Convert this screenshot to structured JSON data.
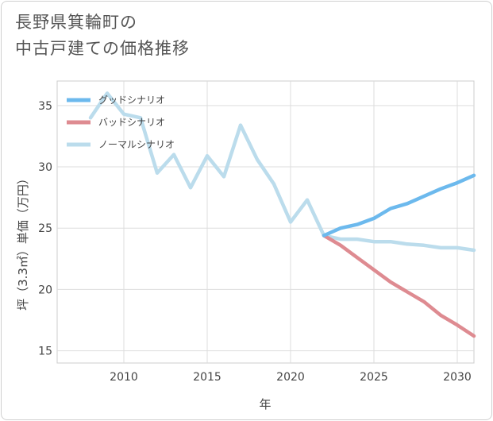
{
  "title": {
    "line1": "長野県箕輪町の",
    "line2": "中古戸建ての価格推移"
  },
  "chart_data": {
    "type": "line",
    "xlabel": "年",
    "ylabel": "坪（3.3㎡）単価（万円）",
    "xlim": [
      2006,
      2031
    ],
    "ylim": [
      14,
      37
    ],
    "xticks": [
      2010,
      2015,
      2020,
      2025,
      2030
    ],
    "yticks": [
      15,
      20,
      25,
      30,
      35
    ],
    "grid": true,
    "legend_position": "top-left",
    "series": [
      {
        "name": "グッドシナリオ",
        "color": "#6cb9ed",
        "x": [
          2022,
          2023,
          2024,
          2025,
          2026,
          2027,
          2028,
          2029,
          2030,
          2031
        ],
        "values": [
          24.4,
          25.0,
          25.3,
          25.8,
          26.6,
          27.0,
          27.6,
          28.2,
          28.7,
          29.3
        ]
      },
      {
        "name": "バッドシナリオ",
        "color": "#de8b91",
        "x": [
          2022,
          2023,
          2024,
          2025,
          2026,
          2027,
          2028,
          2029,
          2030,
          2031
        ],
        "values": [
          24.4,
          23.6,
          22.6,
          21.6,
          20.6,
          19.8,
          19.0,
          17.9,
          17.1,
          16.2
        ]
      },
      {
        "name": "ノーマルシナリオ",
        "color": "#bbdcec",
        "x": [
          2008,
          2009,
          2010,
          2011,
          2012,
          2013,
          2014,
          2015,
          2016,
          2017,
          2018,
          2019,
          2020,
          2021,
          2022,
          2023,
          2024,
          2025,
          2026,
          2027,
          2028,
          2029,
          2030,
          2031
        ],
        "values": [
          34.0,
          36.0,
          34.3,
          34.0,
          29.5,
          31.0,
          28.3,
          30.9,
          29.2,
          33.4,
          30.6,
          28.6,
          25.5,
          27.3,
          24.4,
          24.1,
          24.1,
          23.9,
          23.9,
          23.7,
          23.6,
          23.4,
          23.4,
          23.2
        ]
      }
    ]
  }
}
